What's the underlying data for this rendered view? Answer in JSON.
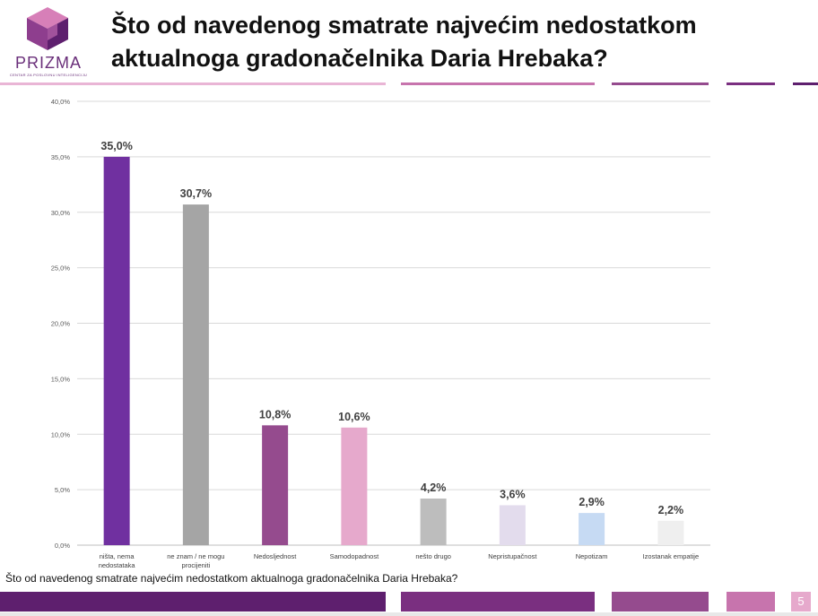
{
  "logo": {
    "name": "PRIZMA",
    "subtitle": "CENTAR ZA POSLOVNU INTELIGENCIJU"
  },
  "slide": {
    "title": "Što od navedenog smatrate najvećim nedostatkom aktualnoga gradonačelnika Daria Hrebaka?",
    "footer_question": "Što od navedenog smatrate najvećim nedostatkom aktualnoga gradonačelnika Daria Hrebaka?",
    "page_number": "5"
  },
  "colors": {
    "accent_dark": "#5e1f6e",
    "accent_mid": "#8e3e8e",
    "accent_pink": "#c774ad"
  },
  "chart_data": {
    "type": "bar",
    "categories": [
      "ništa, nema nedostataka",
      "ne znam / ne mogu procijeniti",
      "Nedosljednost",
      "Samodopadnost",
      "nešto drugo",
      "Nepristupačnost",
      "Nepotizam",
      "Izostanak empatije"
    ],
    "category_lines": [
      [
        "ništa, nema",
        "nedostataka"
      ],
      [
        "ne znam / ne mogu",
        "procijeniti"
      ],
      [
        "Nedosljednost"
      ],
      [
        "Samodopadnost"
      ],
      [
        "nešto drugo"
      ],
      [
        "Nepristupačnost"
      ],
      [
        "Nepotizam"
      ],
      [
        "Izostanak empatije"
      ]
    ],
    "values": [
      35.0,
      30.7,
      10.8,
      10.6,
      4.2,
      3.6,
      2.9,
      2.2
    ],
    "value_labels": [
      "35,0%",
      "30,7%",
      "10,8%",
      "10,6%",
      "4,2%",
      "3,6%",
      "2,9%",
      "2,2%"
    ],
    "bar_colors": [
      "#7030a0",
      "#a5a5a5",
      "#954b8e",
      "#e6a9cc",
      "#bdbdbd",
      "#e3dced",
      "#c6daf3",
      "#efefef"
    ],
    "y_ticks": [
      0,
      5,
      10,
      15,
      20,
      25,
      30,
      35,
      40
    ],
    "y_tick_labels": [
      "0,0%",
      "5,0%",
      "10,0%",
      "15,0%",
      "20,0%",
      "25,0%",
      "30,0%",
      "35,0%",
      "40,0%"
    ],
    "ylim": [
      0,
      40
    ],
    "grid": true,
    "title": "",
    "xlabel": "",
    "ylabel": ""
  }
}
